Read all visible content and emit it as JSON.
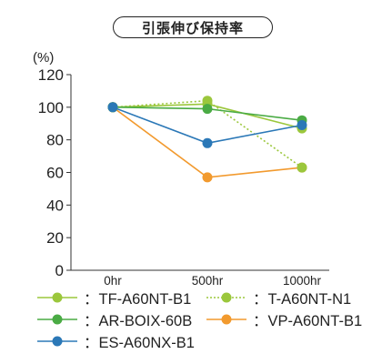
{
  "chart_data": {
    "type": "line",
    "title": "引張伸び保持率",
    "ylabel": "(%)",
    "xlabel": "",
    "categories": [
      "0hr",
      "500hr",
      "1000hr"
    ],
    "ylim": [
      0,
      120
    ],
    "yticks": [
      0,
      20,
      40,
      60,
      80,
      100,
      120
    ],
    "grid": false,
    "legend_position": "bottom",
    "series": [
      {
        "name": "：TF-A60NT-B1",
        "values": [
          100,
          102,
          87
        ],
        "color": "#9bc73c",
        "line_style": "solid"
      },
      {
        "name": "：T-A60NT-N1",
        "values": [
          100,
          104,
          63
        ],
        "color": "#9bc73c",
        "line_style": "dotted"
      },
      {
        "name": "：AR-BOIX-60B",
        "values": [
          100,
          99,
          92
        ],
        "color": "#4aab44",
        "line_style": "solid"
      },
      {
        "name": "：VP-A60NT-B1",
        "values": [
          100,
          57,
          63
        ],
        "color": "#f29a2e",
        "line_style": "solid"
      },
      {
        "name": "：ES-A60NX-B1",
        "values": [
          100,
          78,
          89
        ],
        "color": "#2b78b7",
        "line_style": "solid"
      }
    ]
  }
}
